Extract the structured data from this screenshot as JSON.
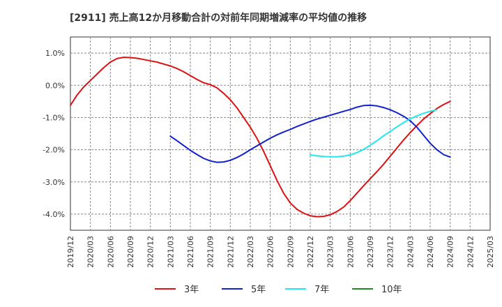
{
  "chart_data": {
    "type": "line",
    "title": "[2911]  売上高12か月移動合計の対前年同期増減率の平均値の推移",
    "xlabel": "",
    "ylabel": "",
    "ylim": [
      -4.5,
      1.5
    ],
    "y_ticks": [
      1.0,
      0.0,
      -1.0,
      -2.0,
      -3.0,
      -4.0
    ],
    "y_tick_labels": [
      "1.0%",
      "0.0%",
      "-1.0%",
      "-2.0%",
      "-3.0%",
      "-4.0%"
    ],
    "x_tick_labels": [
      "2019/12",
      "2020/03",
      "2020/06",
      "2020/09",
      "2020/12",
      "2021/03",
      "2021/06",
      "2021/09",
      "2021/12",
      "2022/03",
      "2022/06",
      "2022/09",
      "2022/12",
      "2023/03",
      "2023/06",
      "2023/09",
      "2023/12",
      "2024/03",
      "2024/06",
      "2024/09",
      "2024/12",
      "2025/03"
    ],
    "grid": true,
    "legend_position": "bottom",
    "series": [
      {
        "name": "3年",
        "color": "#dd1111",
        "points": [
          [
            "2019/12",
            -0.62
          ],
          [
            "2020/01",
            -0.3
          ],
          [
            "2020/02",
            -0.05
          ],
          [
            "2020/03",
            0.15
          ],
          [
            "2020/04",
            0.35
          ],
          [
            "2020/05",
            0.55
          ],
          [
            "2020/06",
            0.72
          ],
          [
            "2020/07",
            0.83
          ],
          [
            "2020/08",
            0.87
          ],
          [
            "2020/09",
            0.86
          ],
          [
            "2020/10",
            0.84
          ],
          [
            "2020/11",
            0.8
          ],
          [
            "2020/12",
            0.76
          ],
          [
            "2021/01",
            0.72
          ],
          [
            "2021/02",
            0.66
          ],
          [
            "2021/03",
            0.6
          ],
          [
            "2021/04",
            0.52
          ],
          [
            "2021/05",
            0.42
          ],
          [
            "2021/06",
            0.3
          ],
          [
            "2021/07",
            0.18
          ],
          [
            "2021/08",
            0.08
          ],
          [
            "2021/09",
            0.02
          ],
          [
            "2021/10",
            -0.08
          ],
          [
            "2021/11",
            -0.25
          ],
          [
            "2021/12",
            -0.45
          ],
          [
            "2022/01",
            -0.7
          ],
          [
            "2022/02",
            -1.0
          ],
          [
            "2022/03",
            -1.3
          ],
          [
            "2022/04",
            -1.65
          ],
          [
            "2022/05",
            -2.05
          ],
          [
            "2022/06",
            -2.5
          ],
          [
            "2022/07",
            -2.95
          ],
          [
            "2022/08",
            -3.35
          ],
          [
            "2022/09",
            -3.65
          ],
          [
            "2022/10",
            -3.85
          ],
          [
            "2022/11",
            -3.97
          ],
          [
            "2022/12",
            -4.05
          ],
          [
            "2023/01",
            -4.08
          ],
          [
            "2023/02",
            -4.07
          ],
          [
            "2023/03",
            -4.02
          ],
          [
            "2023/04",
            -3.92
          ],
          [
            "2023/05",
            -3.78
          ],
          [
            "2023/06",
            -3.58
          ],
          [
            "2023/07",
            -3.35
          ],
          [
            "2023/08",
            -3.12
          ],
          [
            "2023/09",
            -2.9
          ],
          [
            "2023/10",
            -2.68
          ],
          [
            "2023/11",
            -2.45
          ],
          [
            "2023/12",
            -2.2
          ],
          [
            "2024/01",
            -1.95
          ],
          [
            "2024/02",
            -1.7
          ],
          [
            "2024/03",
            -1.47
          ],
          [
            "2024/04",
            -1.25
          ],
          [
            "2024/05",
            -1.05
          ],
          [
            "2024/06",
            -0.88
          ],
          [
            "2024/07",
            -0.72
          ],
          [
            "2024/08",
            -0.6
          ],
          [
            "2024/09",
            -0.5
          ]
        ]
      },
      {
        "name": "5年",
        "color": "#1122cc",
        "points": [
          [
            "2021/03",
            -1.58
          ],
          [
            "2021/04",
            -1.72
          ],
          [
            "2021/05",
            -1.87
          ],
          [
            "2021/06",
            -2.02
          ],
          [
            "2021/07",
            -2.15
          ],
          [
            "2021/08",
            -2.27
          ],
          [
            "2021/09",
            -2.35
          ],
          [
            "2021/10",
            -2.39
          ],
          [
            "2021/11",
            -2.38
          ],
          [
            "2021/12",
            -2.33
          ],
          [
            "2022/01",
            -2.24
          ],
          [
            "2022/02",
            -2.13
          ],
          [
            "2022/03",
            -2.0
          ],
          [
            "2022/04",
            -1.88
          ],
          [
            "2022/05",
            -1.76
          ],
          [
            "2022/06",
            -1.64
          ],
          [
            "2022/07",
            -1.54
          ],
          [
            "2022/08",
            -1.45
          ],
          [
            "2022/09",
            -1.37
          ],
          [
            "2022/10",
            -1.28
          ],
          [
            "2022/11",
            -1.2
          ],
          [
            "2022/12",
            -1.12
          ],
          [
            "2023/01",
            -1.05
          ],
          [
            "2023/02",
            -0.99
          ],
          [
            "2023/03",
            -0.93
          ],
          [
            "2023/04",
            -0.87
          ],
          [
            "2023/05",
            -0.81
          ],
          [
            "2023/06",
            -0.75
          ],
          [
            "2023/07",
            -0.68
          ],
          [
            "2023/08",
            -0.63
          ],
          [
            "2023/09",
            -0.62
          ],
          [
            "2023/10",
            -0.64
          ],
          [
            "2023/11",
            -0.69
          ],
          [
            "2023/12",
            -0.76
          ],
          [
            "2024/01",
            -0.85
          ],
          [
            "2024/02",
            -0.96
          ],
          [
            "2024/03",
            -1.1
          ],
          [
            "2024/04",
            -1.3
          ],
          [
            "2024/05",
            -1.55
          ],
          [
            "2024/06",
            -1.8
          ],
          [
            "2024/07",
            -2.0
          ],
          [
            "2024/08",
            -2.15
          ],
          [
            "2024/09",
            -2.23
          ]
        ]
      },
      {
        "name": "7年",
        "color": "#22e8ee",
        "points": [
          [
            "2022/12",
            -2.16
          ],
          [
            "2023/01",
            -2.19
          ],
          [
            "2023/02",
            -2.21
          ],
          [
            "2023/03",
            -2.22
          ],
          [
            "2023/04",
            -2.22
          ],
          [
            "2023/05",
            -2.2
          ],
          [
            "2023/06",
            -2.16
          ],
          [
            "2023/07",
            -2.09
          ],
          [
            "2023/08",
            -1.99
          ],
          [
            "2023/09",
            -1.86
          ],
          [
            "2023/10",
            -1.72
          ],
          [
            "2023/11",
            -1.57
          ],
          [
            "2023/12",
            -1.43
          ],
          [
            "2024/01",
            -1.29
          ],
          [
            "2024/02",
            -1.16
          ],
          [
            "2024/03",
            -1.04
          ],
          [
            "2024/04",
            -0.95
          ],
          [
            "2024/05",
            -0.87
          ],
          [
            "2024/06",
            -0.81
          ],
          [
            "2024/07",
            -0.76
          ]
        ]
      },
      {
        "name": "10年",
        "color": "#228822",
        "points": []
      }
    ]
  }
}
